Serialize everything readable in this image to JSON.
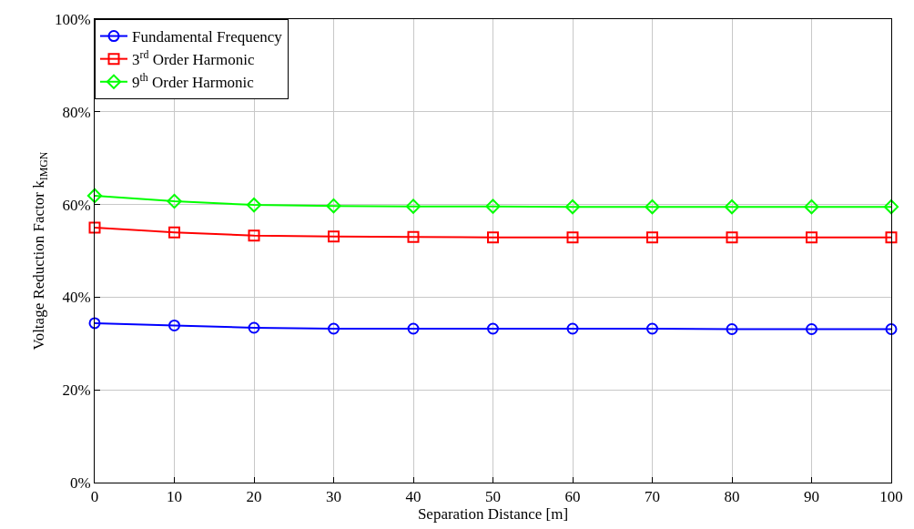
{
  "chart_data": {
    "type": "line",
    "xlabel": "Separation Distance [m]",
    "ylabel": "Voltage Reduction Factor k$_{IMGN}$",
    "x": [
      0,
      10,
      20,
      30,
      40,
      50,
      60,
      70,
      80,
      90,
      100
    ],
    "series": [
      {
        "name": "Fundamental Frequency",
        "color": "#0000ff",
        "marker": "circle",
        "values": [
          34.4,
          33.9,
          33.4,
          33.2,
          33.2,
          33.2,
          33.2,
          33.2,
          33.1,
          33.1,
          33.1
        ]
      },
      {
        "name": "3$^{rd}$ Order Harmonic",
        "color": "#ff0000",
        "marker": "square",
        "values": [
          55.0,
          54.0,
          53.3,
          53.1,
          53.0,
          52.9,
          52.9,
          52.9,
          52.9,
          52.9,
          52.9
        ]
      },
      {
        "name": "9$^{th}$ Order Harmonic",
        "color": "#00ff00",
        "marker": "diamond",
        "values": [
          61.9,
          60.7,
          59.9,
          59.7,
          59.6,
          59.6,
          59.5,
          59.5,
          59.5,
          59.5,
          59.5
        ]
      }
    ],
    "xlim": [
      0,
      100
    ],
    "xticks": [
      0,
      10,
      20,
      30,
      40,
      50,
      60,
      70,
      80,
      90,
      100
    ],
    "ylim": [
      0,
      100
    ],
    "yticks": [
      {
        "value": 0,
        "label": "0%"
      },
      {
        "value": 20,
        "label": "20%"
      },
      {
        "value": 40,
        "label": "40%"
      },
      {
        "value": 60,
        "label": "60%"
      },
      {
        "value": 80,
        "label": "80%"
      },
      {
        "value": 100,
        "label": "100%"
      }
    ],
    "grid": true,
    "legend": "top left",
    "line_style": "solid"
  }
}
